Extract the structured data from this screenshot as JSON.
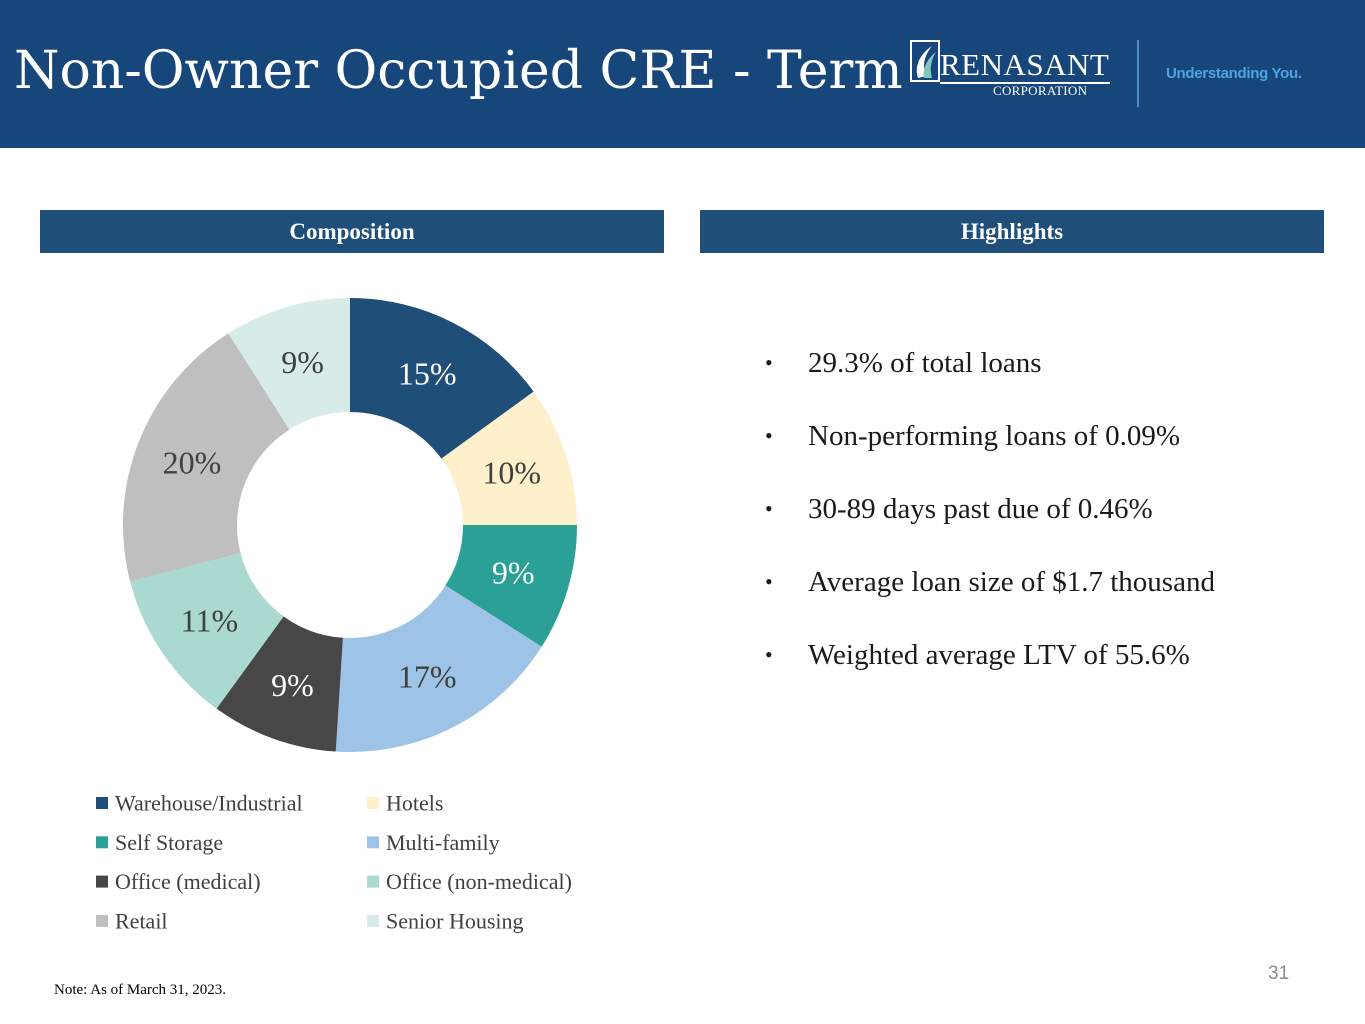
{
  "header": {
    "title": "Non-Owner Occupied CRE - Term",
    "logo_name": "RENASANT",
    "logo_sub": "CORPORATION",
    "tagline": "Understanding You.",
    "background_color": "#17477a"
  },
  "sections": {
    "composition_title": "Composition",
    "highlights_title": "Highlights"
  },
  "chart_data": {
    "type": "pie",
    "style": "donut",
    "title": "Composition",
    "categories": [
      "Warehouse/Industrial",
      "Hotels",
      "Self Storage",
      "Multi-family",
      "Office (medical)",
      "Office (non-medical)",
      "Retail",
      "Senior Housing"
    ],
    "values": [
      15,
      10,
      9,
      17,
      9,
      11,
      20,
      9
    ],
    "labels": [
      "15%",
      "10%",
      "9%",
      "17%",
      "9%",
      "11%",
      "20%",
      "9%"
    ],
    "colors": [
      "#1f4e79",
      "#fff0cc",
      "#2aa096",
      "#9dc3e6",
      "#474747",
      "#a9d9d0",
      "#bfbfbf",
      "#d7ece9"
    ],
    "label_colors": [
      "#ffffff",
      "#404040",
      "#ffffff",
      "#404040",
      "#ffffff",
      "#404040",
      "#404040",
      "#404040"
    ],
    "legend_order": [
      "Warehouse/Industrial",
      "Hotels",
      "Self Storage",
      "Multi-family",
      "Office (medical)",
      "Office (non-medical)",
      "Retail",
      "Senior Housing"
    ],
    "legend_position": "bottom"
  },
  "highlights": [
    "29.3% of total loans",
    "Non-performing loans of 0.09%",
    "30-89 days past due of 0.46%",
    "Average loan size of $1.7 thousand",
    "Weighted average LTV of 55.6%"
  ],
  "footer": {
    "note": "Note: As of March 31, 2023.",
    "page_number": "31"
  }
}
